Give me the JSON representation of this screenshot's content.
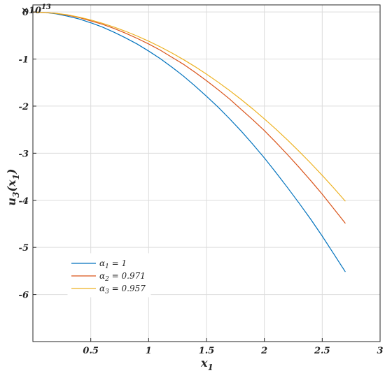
{
  "chart_data": {
    "type": "line",
    "title": "",
    "xlabel": "x",
    "xlabel_sub": "1",
    "ylabel": "u",
    "ylabel_sub": "3",
    "ylabel_arg": "(x",
    "ylabel_arg_sub": "1",
    "ylabel_close": ")",
    "y_multiplier": "×10",
    "y_multiplier_exp": "13",
    "xlim": [
      0,
      3
    ],
    "ylim": [
      -7,
      0.15
    ],
    "x_ticks": [
      0.5,
      1,
      1.5,
      2,
      2.5,
      3
    ],
    "x_tick_labels": [
      "0.5",
      "1",
      "1.5",
      "2",
      "2.5",
      "3"
    ],
    "y_ticks": [
      0,
      -1,
      -2,
      -3,
      -4,
      -5,
      -6
    ],
    "y_tick_labels": [
      "0",
      "-1",
      "-2",
      "-3",
      "-4",
      "-5",
      "-6"
    ],
    "grid": true,
    "legend_position": "bottom-left",
    "series": [
      {
        "name": "α₁ = 1",
        "name_symbol": "α",
        "name_sub": "1",
        "name_rest": " = 1",
        "color": "#0072BD",
        "x": [
          0,
          0.1,
          0.2,
          0.3,
          0.4,
          0.5,
          0.6,
          0.7,
          0.8,
          0.9,
          1.0,
          1.1,
          1.2,
          1.3,
          1.4,
          1.5,
          1.6,
          1.7,
          1.8,
          1.9,
          2.0,
          2.1,
          2.2,
          2.3,
          2.4,
          2.5,
          2.6,
          2.7
        ],
        "y": [
          0,
          -0.01,
          -0.04,
          -0.09,
          -0.15,
          -0.23,
          -0.32,
          -0.43,
          -0.55,
          -0.68,
          -0.83,
          -0.99,
          -1.17,
          -1.36,
          -1.57,
          -1.79,
          -2.02,
          -2.27,
          -2.53,
          -2.81,
          -3.1,
          -3.41,
          -3.73,
          -4.06,
          -4.4,
          -4.76,
          -5.14,
          -5.52
        ]
      },
      {
        "name": "α₂ = 0.971",
        "name_symbol": "α",
        "name_sub": "2",
        "name_rest": " = 0.971",
        "color": "#D95319",
        "x": [
          0,
          0.1,
          0.2,
          0.3,
          0.4,
          0.5,
          0.6,
          0.7,
          0.8,
          0.9,
          1.0,
          1.1,
          1.2,
          1.3,
          1.4,
          1.5,
          1.6,
          1.7,
          1.8,
          1.9,
          2.0,
          2.1,
          2.2,
          2.3,
          2.4,
          2.5,
          2.6,
          2.7
        ],
        "y": [
          0,
          -0.01,
          -0.03,
          -0.07,
          -0.12,
          -0.19,
          -0.26,
          -0.35,
          -0.45,
          -0.56,
          -0.68,
          -0.81,
          -0.96,
          -1.11,
          -1.28,
          -1.46,
          -1.65,
          -1.85,
          -2.07,
          -2.29,
          -2.52,
          -2.77,
          -3.03,
          -3.3,
          -3.58,
          -3.87,
          -4.18,
          -4.49
        ]
      },
      {
        "name": "α₃ = 0.957",
        "name_symbol": "α",
        "name_sub": "3",
        "name_rest": " = 0.957",
        "color": "#EDB120",
        "x": [
          0,
          0.1,
          0.2,
          0.3,
          0.4,
          0.5,
          0.6,
          0.7,
          0.8,
          0.9,
          1.0,
          1.1,
          1.2,
          1.3,
          1.4,
          1.5,
          1.6,
          1.7,
          1.8,
          1.9,
          2.0,
          2.1,
          2.2,
          2.3,
          2.4,
          2.5,
          2.6,
          2.7
        ],
        "y": [
          0,
          -0.01,
          -0.03,
          -0.06,
          -0.11,
          -0.17,
          -0.24,
          -0.32,
          -0.41,
          -0.51,
          -0.62,
          -0.74,
          -0.87,
          -1.01,
          -1.16,
          -1.32,
          -1.49,
          -1.67,
          -1.86,
          -2.06,
          -2.27,
          -2.49,
          -2.72,
          -2.96,
          -3.21,
          -3.47,
          -3.74,
          -4.02
        ]
      }
    ]
  }
}
